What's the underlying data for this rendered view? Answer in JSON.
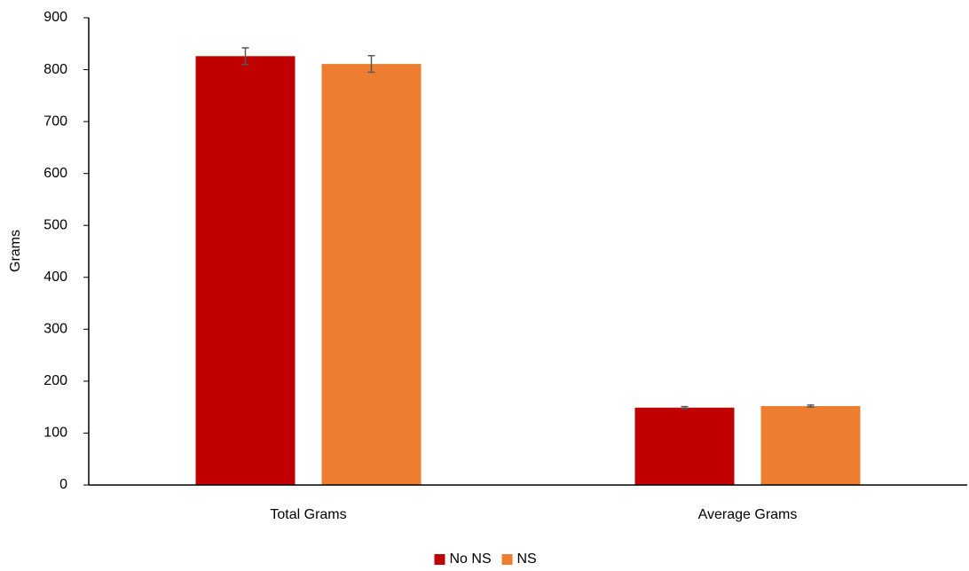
{
  "chart_data": {
    "type": "bar",
    "y_label": "Grams",
    "categories": [
      "Total Grams",
      "Average Grams"
    ],
    "series": [
      {
        "name": "No NS",
        "color": "#c00000",
        "values": [
          826,
          149
        ],
        "errors": [
          16,
          2
        ]
      },
      {
        "name": "NS",
        "color": "#ed7d31",
        "values": [
          811,
          152
        ],
        "errors": [
          16,
          2
        ]
      }
    ],
    "ylim": [
      0,
      900
    ],
    "yticks": [
      0,
      100,
      200,
      300,
      400,
      500,
      600,
      700,
      800,
      900
    ],
    "grid": false,
    "legend": "bottom"
  }
}
